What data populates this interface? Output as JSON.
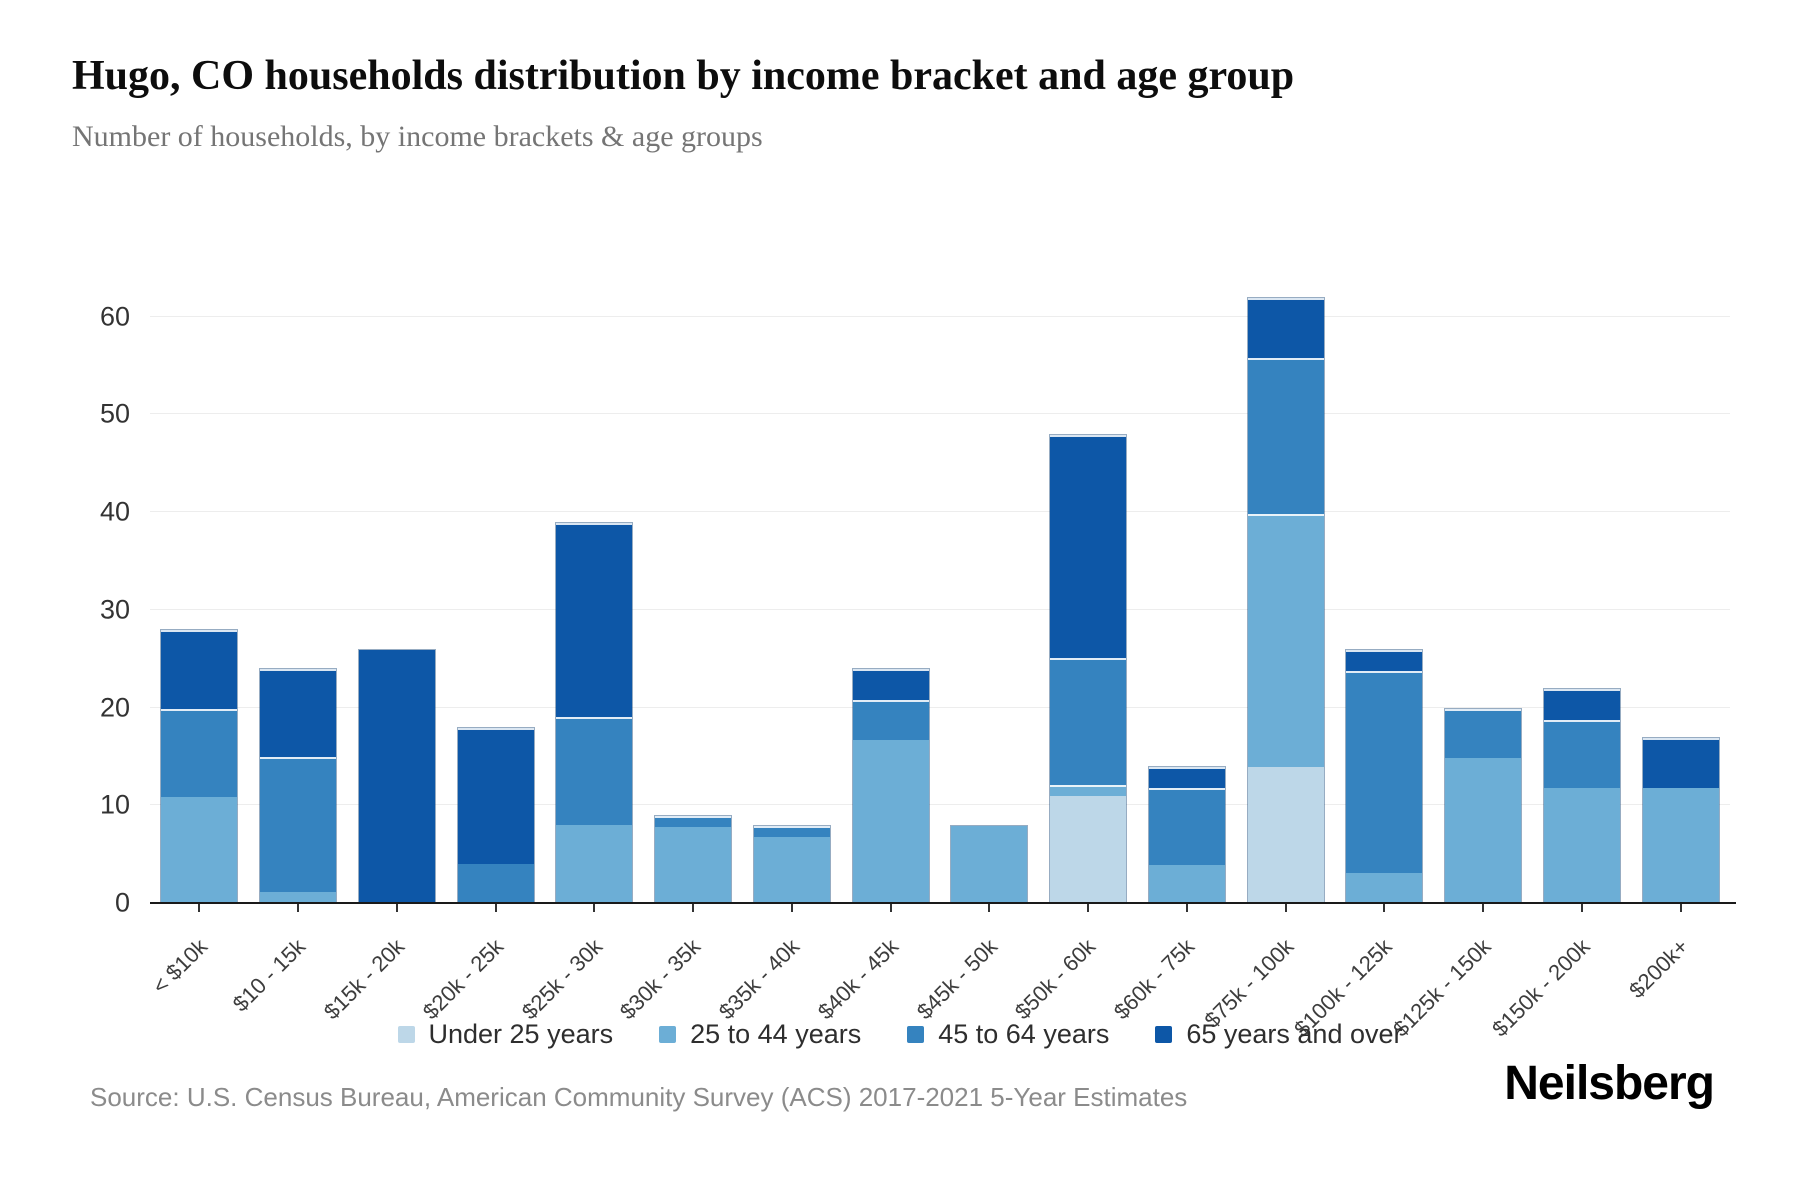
{
  "page": {
    "title": "Hugo, CO households distribution by income bracket and age group",
    "subtitle": "Number of households, by income brackets & age groups",
    "source": "Source: U.S. Census Bureau, American Community Survey (ACS) 2017-2021 5-Year Estimates",
    "brand": "Neilsberg"
  },
  "chart_data": {
    "type": "bar",
    "stacked": true,
    "title": "Hugo, CO households distribution by income bracket and age group",
    "subtitle": "Number of households, by income brackets & age groups",
    "xlabel": "",
    "ylabel": "Number of households",
    "categories": [
      "< $10k",
      "$10 - 15k",
      "$15k - 20k",
      "$20k - 25k",
      "$25k - 30k",
      "$30k - 35k",
      "$35k - 40k",
      "$40k - 45k",
      "$45k - 50k",
      "$50k - 60k",
      "$60k - 75k",
      "$75k - 100k",
      "$100k - 125k",
      "$125k - 150k",
      "$150k - 200k",
      "$200k+"
    ],
    "series": [
      {
        "name": "Under 25 years",
        "color": "#bdd7e8",
        "values": [
          0,
          0,
          0,
          0,
          0,
          0,
          0,
          0,
          0,
          11,
          0,
          14,
          0,
          0,
          0,
          0
        ]
      },
      {
        "name": "25 to 44 years",
        "color": "#6caed6",
        "values": [
          11,
          1,
          0,
          0,
          8,
          8,
          7,
          17,
          8,
          1,
          4,
          26,
          3,
          15,
          12,
          12
        ]
      },
      {
        "name": "45 to 64 years",
        "color": "#3583bf",
        "values": [
          9,
          14,
          0,
          4,
          11,
          1,
          1,
          4,
          0,
          13,
          8,
          16,
          21,
          5,
          7,
          0
        ]
      },
      {
        "name": "65 years and over",
        "color": "#0d57a7",
        "values": [
          8,
          9,
          26,
          14,
          20,
          0,
          0,
          3,
          0,
          23,
          2,
          6,
          2,
          0,
          3,
          5
        ]
      }
    ],
    "totals": [
      28,
      24,
      26,
      18,
      39,
      9,
      8,
      24,
      8,
      48,
      14,
      62,
      26,
      20,
      22,
      17
    ],
    "y_ticks": [
      0,
      10,
      20,
      30,
      40,
      50,
      60
    ],
    "ylim": [
      0,
      66
    ],
    "grid": true,
    "legend_position": "bottom"
  }
}
